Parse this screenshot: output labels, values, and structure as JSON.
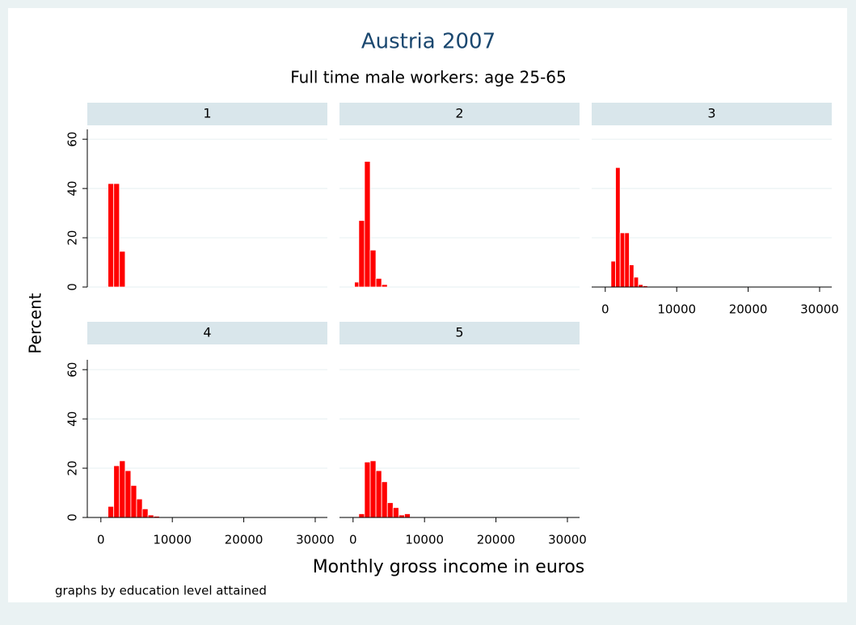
{
  "title": "Austria 2007",
  "subtitle": "Full time male workers: age 25-65",
  "y_label": "Percent",
  "x_label": "Monthly gross income in euros",
  "note": "graphs by education level attained",
  "chart_data": [
    {
      "type": "histogram",
      "title": "1",
      "color": "#ff0000",
      "grid": true,
      "x_axis": false,
      "y_axis": true,
      "bins": [
        1000,
        1800,
        2600,
        3400
      ],
      "values": [
        42,
        42,
        14.5
      ],
      "xlim": [
        -1900,
        31700
      ],
      "ylim": [
        0,
        64
      ],
      "xticks": [
        0,
        10000,
        20000,
        30000
      ],
      "yticks": [
        0,
        20,
        40,
        60
      ]
    },
    {
      "type": "histogram",
      "title": "2",
      "color": "#ff0000",
      "grid": true,
      "x_axis": false,
      "y_axis": false,
      "bins": [
        200,
        800,
        1600,
        2400,
        3200,
        4000,
        4800
      ],
      "values": [
        2,
        27,
        51,
        15,
        3.5,
        1
      ],
      "xlim": [
        -1900,
        31700
      ],
      "ylim": [
        0,
        64
      ],
      "xticks": [
        0,
        10000,
        20000,
        30000
      ],
      "yticks": [
        0,
        20,
        40,
        60
      ]
    },
    {
      "type": "histogram",
      "title": "3",
      "color": "#ff0000",
      "grid": true,
      "x_axis": true,
      "y_axis": false,
      "bins": [
        800,
        1440,
        2080,
        2720,
        3360,
        4000,
        4640,
        5280,
        5920
      ],
      "values": [
        10.5,
        48.5,
        22,
        22,
        9,
        4,
        1,
        0.5
      ],
      "xlim": [
        -1900,
        31700
      ],
      "ylim": [
        0,
        64
      ],
      "xticks": [
        0,
        10000,
        20000,
        30000
      ],
      "yticks": [
        0,
        20,
        40,
        60
      ]
    },
    {
      "type": "histogram",
      "title": "4",
      "color": "#ff0000",
      "grid": true,
      "x_axis": true,
      "y_axis": true,
      "bins": [
        1000,
        1800,
        2600,
        3400,
        4200,
        5000,
        5800,
        6600,
        7400,
        8200
      ],
      "values": [
        4.5,
        21,
        23,
        19,
        13,
        7.5,
        3.5,
        1,
        0.5
      ],
      "xlim": [
        -1900,
        31700
      ],
      "ylim": [
        0,
        64
      ],
      "xticks": [
        0,
        10000,
        20000,
        30000
      ],
      "yticks": [
        0,
        20,
        40,
        60
      ]
    },
    {
      "type": "histogram",
      "title": "5",
      "color": "#ff0000",
      "grid": true,
      "x_axis": true,
      "y_axis": false,
      "bins": [
        800,
        1600,
        2400,
        3200,
        4000,
        4800,
        5600,
        6400,
        7200,
        8000,
        8800
      ],
      "values": [
        1.5,
        22.5,
        23,
        19,
        14.5,
        6,
        4,
        1,
        1.5,
        0.3
      ],
      "xlim": [
        -1900,
        31700
      ],
      "ylim": [
        0,
        64
      ],
      "xticks": [
        0,
        10000,
        20000,
        30000
      ],
      "yticks": [
        0,
        20,
        40,
        60
      ]
    }
  ]
}
